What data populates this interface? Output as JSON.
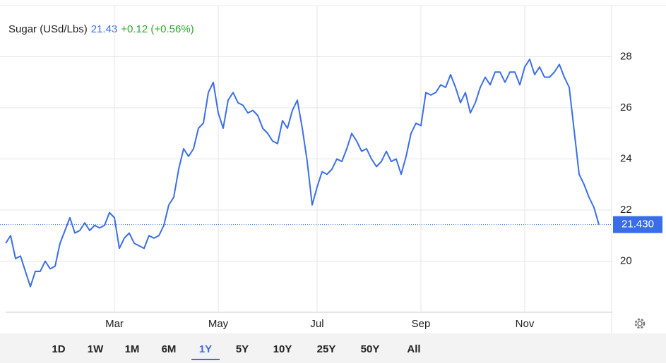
{
  "chart_data": {
    "type": "line",
    "title": "Sugar (USd/Lbs)",
    "price": "21.43",
    "change": "+0.12 (+0.56%)",
    "last_price_label": "21.430",
    "categories": [
      null,
      null,
      null,
      null,
      null,
      null,
      null,
      null,
      null,
      null,
      null,
      null,
      null,
      null,
      null,
      null,
      null,
      null,
      null,
      null,
      null,
      null,
      "Mar",
      null,
      null,
      null,
      null,
      null,
      null,
      null,
      null,
      null,
      null,
      null,
      null,
      null,
      null,
      null,
      null,
      null,
      null,
      null,
      null,
      "May",
      null,
      null,
      null,
      null,
      null,
      null,
      null,
      null,
      null,
      null,
      null,
      null,
      null,
      null,
      null,
      null,
      null,
      null,
      null,
      "Jul",
      null,
      null,
      null,
      null,
      null,
      null,
      null,
      null,
      null,
      null,
      null,
      null,
      null,
      null,
      null,
      null,
      null,
      null,
      null,
      null,
      "Sep",
      null,
      null,
      null,
      null,
      null,
      null,
      null,
      null,
      null,
      null,
      null,
      null,
      null,
      null,
      null,
      null,
      null,
      null,
      null,
      null,
      "Nov",
      null,
      null,
      null,
      null,
      null,
      null,
      null,
      null,
      null,
      null,
      null,
      null,
      null,
      null,
      null
    ],
    "series": [
      {
        "name": "Sugar",
        "color": "#3a6ee8",
        "values": [
          20.7,
          21.0,
          20.1,
          20.2,
          19.6,
          19.0,
          19.6,
          19.6,
          20.0,
          19.7,
          19.8,
          20.7,
          21.2,
          21.7,
          21.1,
          21.2,
          21.5,
          21.2,
          21.4,
          21.3,
          21.4,
          21.9,
          21.7,
          20.5,
          20.9,
          21.1,
          20.7,
          20.6,
          20.5,
          21.0,
          20.9,
          21.0,
          21.4,
          22.2,
          22.5,
          23.6,
          24.4,
          24.1,
          24.4,
          25.2,
          25.4,
          26.6,
          27.0,
          25.8,
          25.2,
          26.3,
          26.6,
          26.2,
          26.1,
          25.8,
          25.9,
          25.7,
          25.2,
          25.0,
          24.7,
          24.6,
          25.5,
          25.2,
          25.9,
          26.3,
          25.2,
          23.9,
          22.2,
          22.9,
          23.5,
          23.4,
          23.6,
          24.0,
          23.9,
          24.4,
          25.0,
          24.7,
          24.3,
          24.4,
          24.0,
          23.7,
          23.9,
          24.3,
          23.9,
          24.0,
          23.4,
          24.1,
          25.0,
          25.4,
          25.3,
          26.6,
          26.5,
          26.6,
          26.9,
          26.8,
          27.3,
          26.8,
          26.2,
          26.6,
          25.8,
          26.2,
          26.8,
          27.2,
          26.9,
          27.4,
          27.4,
          27.0,
          27.4,
          27.4,
          26.9,
          27.6,
          27.9,
          27.3,
          27.6,
          27.2,
          27.2,
          27.4,
          27.7,
          27.2,
          26.8,
          25.1,
          23.4,
          23.0,
          22.5,
          22.1,
          21.43
        ]
      }
    ],
    "ylim": [
      18,
      30
    ],
    "yticks": [
      20,
      22,
      24,
      26,
      28
    ],
    "grid": true,
    "ranges": [
      "1D",
      "1W",
      "1M",
      "6M",
      "1Y",
      "5Y",
      "10Y",
      "25Y",
      "50Y",
      "All"
    ],
    "active_range_index": 4
  }
}
